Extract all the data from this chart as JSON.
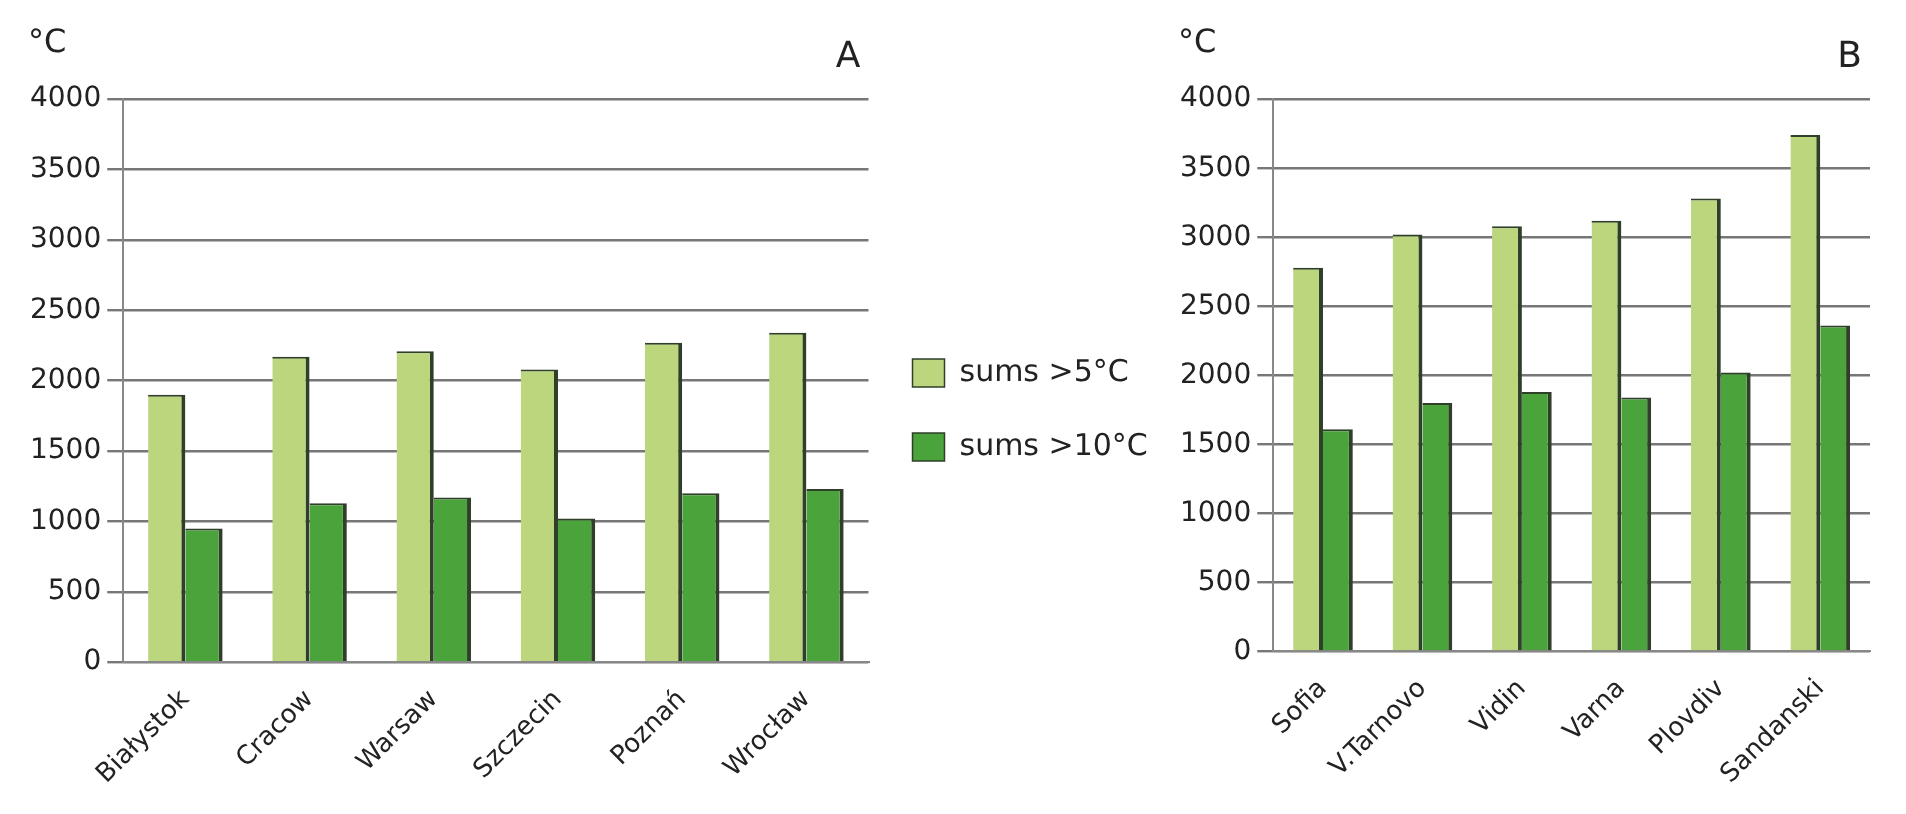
{
  "chart_data": [
    {
      "type": "bar",
      "title": "A",
      "ylabel": "°C",
      "categories": [
        "Białystok",
        "Cracow",
        "Warsaw",
        "Szczecin",
        "Poznań",
        "Wrocław"
      ],
      "series": [
        {
          "name": "sums >5°C",
          "color": "#bcd67d",
          "values": [
            1900,
            2170,
            2210,
            2080,
            2270,
            2340
          ]
        },
        {
          "name": "sums >10°C",
          "color": "#4ba33b",
          "values": [
            950,
            1130,
            1170,
            1020,
            1200,
            1230
          ]
        }
      ],
      "ylim": [
        0,
        4000
      ],
      "yticks": [
        0,
        500,
        1000,
        1500,
        2000,
        2500,
        3000,
        3500,
        4000
      ],
      "grid": "y",
      "legend": "right"
    },
    {
      "type": "bar",
      "title": "B",
      "ylabel": "°C",
      "categories": [
        "Sofia",
        "V.Tarnovo",
        "Vidin",
        "Varna",
        "Plovdiv",
        "Sandanski"
      ],
      "series": [
        {
          "color": "#bcd67d",
          "values": [
            2780,
            3020,
            3080,
            3120,
            3280,
            3740
          ]
        },
        {
          "color": "#4ba33b",
          "values": [
            1610,
            1800,
            1880,
            1840,
            2020,
            2360
          ]
        }
      ],
      "ylim": [
        0,
        4000
      ],
      "yticks": [
        0,
        500,
        1000,
        1500,
        2000,
        2500,
        3000,
        3500,
        4000
      ],
      "grid": "y",
      "legend": false
    }
  ]
}
